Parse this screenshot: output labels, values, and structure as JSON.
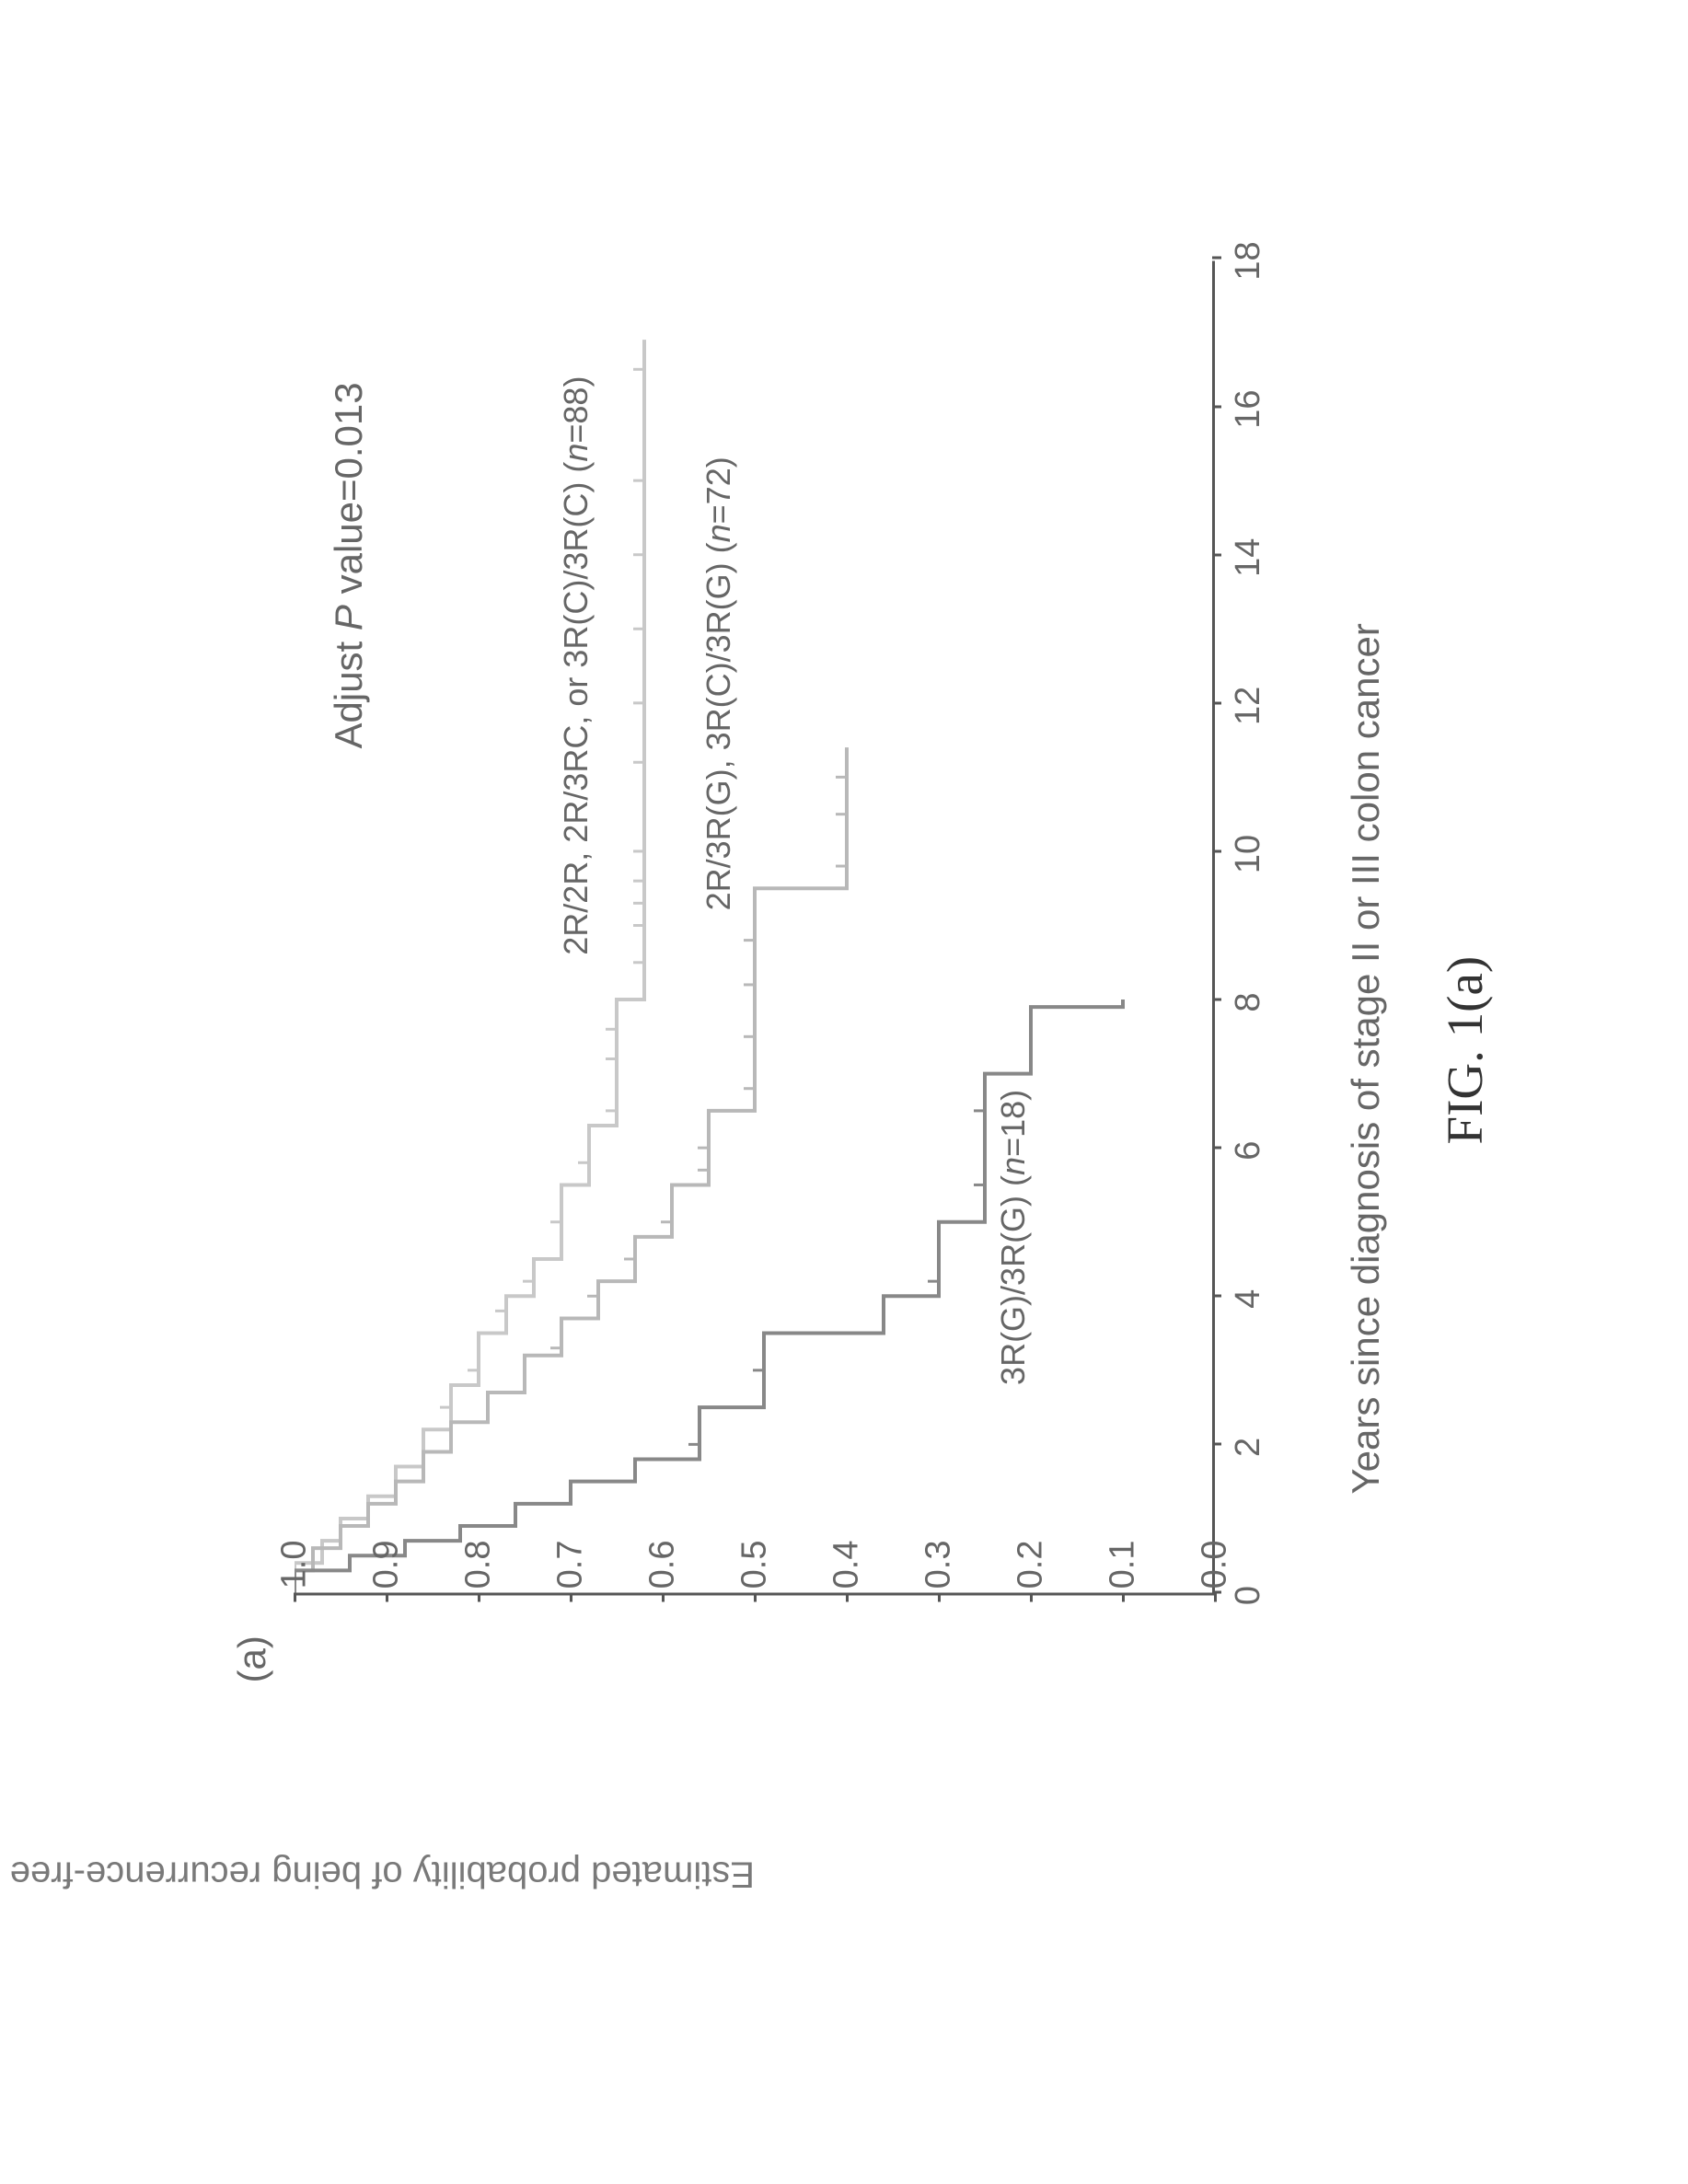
{
  "figure": {
    "panel_label": "(a)",
    "caption": "FIG. 1(a)",
    "p_value_prefix": "Adjust ",
    "p_value_letter": "P",
    "p_value_suffix": " value=0.013",
    "y_axis_title": "Estimated probability of being recurrence-free",
    "x_axis_title": "Years since diagnosis of stage II or III colon cancer",
    "xlim": [
      0,
      18
    ],
    "ylim": [
      0.0,
      1.0
    ],
    "x_ticks": [
      0,
      2,
      4,
      6,
      8,
      10,
      12,
      14,
      16,
      18
    ],
    "y_ticks": [
      "0.0",
      "0.1",
      "0.2",
      "0.3",
      "0.4",
      "0.5",
      "0.6",
      "0.7",
      "0.8",
      "0.9",
      "1.0"
    ],
    "y_tick_values": [
      0.0,
      0.1,
      0.2,
      0.3,
      0.4,
      0.5,
      0.6,
      0.7,
      0.8,
      0.9,
      1.0
    ],
    "background_color": "#ffffff",
    "axis_color": "#555555",
    "label_color": "#666666",
    "label_fontsize": 38,
    "title_fontsize": 42,
    "series": [
      {
        "id": "group1",
        "label_line1": "2R/2R, 2R/3RC, or 3R(C)/3R(C) (",
        "label_n_prefix": "n",
        "label_line1_suffix": "=88)",
        "color": "#c8c8c8",
        "stroke_width": 4,
        "steps": [
          {
            "x": 0.0,
            "y": 1.0
          },
          {
            "x": 0.4,
            "y": 0.97
          },
          {
            "x": 0.7,
            "y": 0.95
          },
          {
            "x": 1.0,
            "y": 0.92
          },
          {
            "x": 1.3,
            "y": 0.89
          },
          {
            "x": 1.7,
            "y": 0.86
          },
          {
            "x": 2.2,
            "y": 0.83
          },
          {
            "x": 2.8,
            "y": 0.8
          },
          {
            "x": 3.5,
            "y": 0.77
          },
          {
            "x": 4.0,
            "y": 0.74
          },
          {
            "x": 4.5,
            "y": 0.71
          },
          {
            "x": 5.5,
            "y": 0.68
          },
          {
            "x": 6.3,
            "y": 0.65
          },
          {
            "x": 8.0,
            "y": 0.62
          },
          {
            "x": 16.9,
            "y": 0.62
          }
        ],
        "censored_x": [
          2.5,
          3.0,
          3.8,
          4.2,
          5.0,
          5.8,
          6.5,
          7.2,
          7.6,
          8.5,
          9.0,
          9.3,
          9.6,
          10.0,
          11.2,
          12.0,
          13.0,
          14.0,
          15.0,
          16.5
        ],
        "label_pos": {
          "x": 8.6,
          "y": 0.695
        }
      },
      {
        "id": "group2",
        "label_line1": "2R/3R(G), 3R(C)/3R(G) (",
        "label_n_prefix": "n",
        "label_line1_suffix": "=72)",
        "color": "#b8b8b8",
        "stroke_width": 4,
        "steps": [
          {
            "x": 0.0,
            "y": 1.0
          },
          {
            "x": 0.3,
            "y": 0.98
          },
          {
            "x": 0.6,
            "y": 0.95
          },
          {
            "x": 0.9,
            "y": 0.92
          },
          {
            "x": 1.2,
            "y": 0.89
          },
          {
            "x": 1.5,
            "y": 0.86
          },
          {
            "x": 1.9,
            "y": 0.83
          },
          {
            "x": 2.3,
            "y": 0.79
          },
          {
            "x": 2.7,
            "y": 0.75
          },
          {
            "x": 3.2,
            "y": 0.71
          },
          {
            "x": 3.7,
            "y": 0.67
          },
          {
            "x": 4.2,
            "y": 0.63
          },
          {
            "x": 4.8,
            "y": 0.59
          },
          {
            "x": 5.5,
            "y": 0.55
          },
          {
            "x": 6.5,
            "y": 0.5
          },
          {
            "x": 9.5,
            "y": 0.4
          },
          {
            "x": 11.4,
            "y": 0.4
          }
        ],
        "censored_x": [
          3.3,
          4.0,
          4.5,
          5.0,
          5.7,
          6.0,
          6.8,
          7.5,
          8.2,
          8.8,
          9.8,
          10.5,
          11.0
        ],
        "label_pos": {
          "x": 9.2,
          "y": 0.54
        }
      },
      {
        "id": "group3",
        "label_line1": "3R(G)/3R(G) (",
        "label_n_prefix": "n",
        "label_line1_suffix": "=18)",
        "color": "#888888",
        "stroke_width": 4,
        "steps": [
          {
            "x": 0.0,
            "y": 1.0
          },
          {
            "x": 0.3,
            "y": 0.94
          },
          {
            "x": 0.5,
            "y": 0.88
          },
          {
            "x": 0.7,
            "y": 0.82
          },
          {
            "x": 0.9,
            "y": 0.76
          },
          {
            "x": 1.2,
            "y": 0.7
          },
          {
            "x": 1.5,
            "y": 0.63
          },
          {
            "x": 1.8,
            "y": 0.56
          },
          {
            "x": 2.5,
            "y": 0.49
          },
          {
            "x": 3.5,
            "y": 0.36
          },
          {
            "x": 4.0,
            "y": 0.3
          },
          {
            "x": 5.0,
            "y": 0.25
          },
          {
            "x": 7.0,
            "y": 0.2
          },
          {
            "x": 7.9,
            "y": 0.1
          },
          {
            "x": 8.0,
            "y": 0.1
          }
        ],
        "censored_x": [
          2.0,
          3.0,
          4.2,
          5.5,
          6.5
        ],
        "label_pos": {
          "x": 2.8,
          "y": 0.22
        }
      }
    ]
  }
}
